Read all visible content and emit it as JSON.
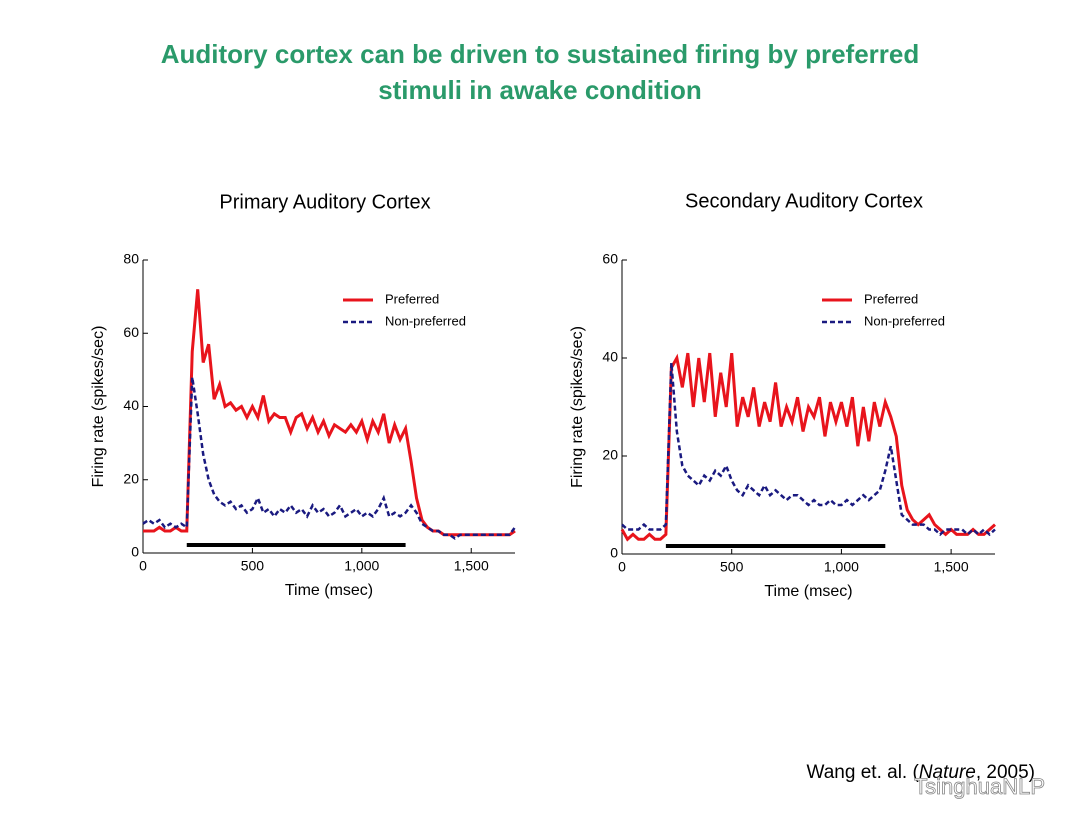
{
  "slide": {
    "title_line1": "Auditory cortex can be driven to sustained firing by preferred",
    "title_line2": "stimuli in awake condition",
    "citation_pre": "Wang et. al. (",
    "citation_italic": "Nature",
    "citation_post": ", 2005)",
    "watermark": "TsinghuaNLP"
  },
  "chart_data": [
    {
      "type": "line",
      "title": "Primary Auditory Cortex",
      "x_label": "Time (msec)",
      "y_label": "Firing rate (spikes/sec)",
      "xlim": [
        0,
        1700
      ],
      "ylim": [
        0,
        80
      ],
      "xticks": [
        0,
        500,
        {
          "value": 1000,
          "label": "1,000"
        },
        {
          "value": 1500,
          "label": "1,500"
        }
      ],
      "yticks": [
        0,
        20,
        40,
        60,
        80
      ],
      "stimulus": [
        200,
        1200
      ],
      "x": [
        0,
        25,
        50,
        75,
        100,
        125,
        150,
        175,
        200,
        225,
        250,
        275,
        300,
        325,
        350,
        375,
        400,
        425,
        450,
        475,
        500,
        525,
        550,
        575,
        600,
        625,
        650,
        675,
        700,
        725,
        750,
        775,
        800,
        825,
        850,
        875,
        900,
        925,
        950,
        975,
        1000,
        1025,
        1050,
        1075,
        1100,
        1125,
        1150,
        1175,
        1200,
        1225,
        1250,
        1275,
        1300,
        1325,
        1350,
        1375,
        1400,
        1425,
        1450,
        1475,
        1500,
        1525,
        1550,
        1575,
        1600,
        1625,
        1650,
        1675,
        1700
      ],
      "series": [
        {
          "name": "Preferred",
          "color": "#e8141c",
          "dash": false,
          "values": [
            6,
            6,
            6,
            7,
            6,
            6,
            7,
            6,
            6,
            55,
            72,
            52,
            57,
            42,
            46,
            40,
            41,
            39,
            40,
            37,
            40,
            37,
            43,
            36,
            38,
            37,
            37,
            33,
            37,
            38,
            34,
            37,
            33,
            36,
            32,
            35,
            34,
            33,
            35,
            33,
            36,
            31,
            36,
            33,
            38,
            30,
            35,
            31,
            34,
            25,
            15,
            9,
            7,
            6,
            6,
            5,
            5,
            5,
            5,
            5,
            5,
            5,
            5,
            5,
            5,
            5,
            5,
            5,
            6
          ]
        },
        {
          "name": "Non-preferred",
          "color": "#1a1a80",
          "dash": true,
          "values": [
            8,
            9,
            8,
            9,
            7,
            8,
            7,
            8,
            7,
            48,
            38,
            27,
            20,
            16,
            14,
            13,
            14,
            12,
            13,
            11,
            12,
            15,
            11,
            12,
            10,
            12,
            11,
            13,
            11,
            12,
            10,
            13,
            11,
            12,
            10,
            11,
            13,
            10,
            11,
            12,
            10,
            11,
            10,
            12,
            15,
            10,
            11,
            10,
            11,
            13,
            11,
            8,
            7,
            6,
            6,
            5,
            5,
            4,
            5,
            5,
            5,
            5,
            5,
            5,
            5,
            5,
            5,
            5,
            7
          ]
        }
      ]
    },
    {
      "type": "line",
      "title": "Secondary Auditory Cortex",
      "x_label": "Time (msec)",
      "y_label": "Firing rate (spikes/sec)",
      "xlim": [
        0,
        1700
      ],
      "ylim": [
        0,
        60
      ],
      "xticks": [
        0,
        500,
        {
          "value": 1000,
          "label": "1,000"
        },
        {
          "value": 1500,
          "label": "1,500"
        }
      ],
      "yticks": [
        0,
        20,
        40,
        60
      ],
      "stimulus": [
        200,
        1200
      ],
      "x": [
        0,
        25,
        50,
        75,
        100,
        125,
        150,
        175,
        200,
        225,
        250,
        275,
        300,
        325,
        350,
        375,
        400,
        425,
        450,
        475,
        500,
        525,
        550,
        575,
        600,
        625,
        650,
        675,
        700,
        725,
        750,
        775,
        800,
        825,
        850,
        875,
        900,
        925,
        950,
        975,
        1000,
        1025,
        1050,
        1075,
        1100,
        1125,
        1150,
        1175,
        1200,
        1225,
        1250,
        1275,
        1300,
        1325,
        1350,
        1375,
        1400,
        1425,
        1450,
        1475,
        1500,
        1525,
        1550,
        1575,
        1600,
        1625,
        1650,
        1675,
        1700
      ],
      "series": [
        {
          "name": "Preferred",
          "color": "#e8141c",
          "dash": false,
          "values": [
            5,
            3,
            4,
            3,
            3,
            4,
            3,
            3,
            4,
            38,
            40,
            34,
            41,
            30,
            40,
            31,
            41,
            28,
            37,
            30,
            41,
            26,
            32,
            28,
            34,
            26,
            31,
            27,
            35,
            26,
            30,
            27,
            32,
            25,
            30,
            28,
            32,
            24,
            31,
            27,
            31,
            26,
            32,
            22,
            30,
            23,
            31,
            26,
            31,
            28,
            24,
            14,
            9,
            7,
            6,
            7,
            8,
            6,
            5,
            4,
            5,
            4,
            4,
            4,
            5,
            4,
            4,
            5,
            6
          ]
        },
        {
          "name": "Non-preferred",
          "color": "#1a1a80",
          "dash": true,
          "values": [
            6,
            5,
            5,
            5,
            6,
            5,
            5,
            5,
            6,
            39,
            25,
            18,
            16,
            15,
            14,
            16,
            15,
            17,
            16,
            18,
            15,
            13,
            12,
            14,
            13,
            12,
            14,
            12,
            13,
            12,
            11,
            12,
            12,
            11,
            10,
            11,
            10,
            10,
            11,
            10,
            10,
            11,
            10,
            11,
            12,
            11,
            12,
            13,
            17,
            22,
            15,
            8,
            7,
            6,
            6,
            6,
            5,
            5,
            4,
            5,
            5,
            5,
            5,
            4,
            5,
            4,
            5,
            4,
            5
          ]
        }
      ]
    }
  ]
}
